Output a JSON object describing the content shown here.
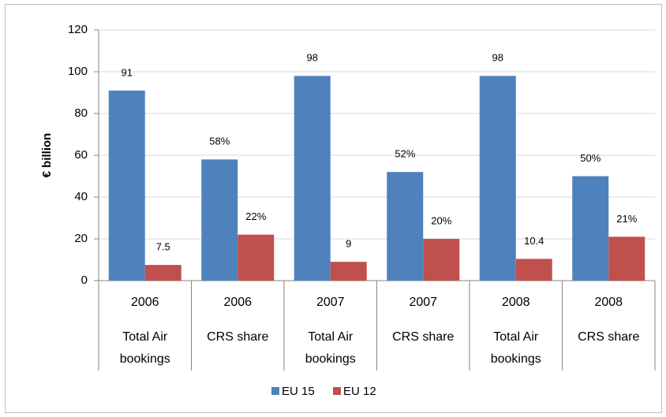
{
  "chart_data": {
    "type": "bar",
    "y_label": "€ billion",
    "categories": [
      "2006",
      "2006",
      "2007",
      "2007",
      "2008",
      "2008"
    ],
    "category_groups": [
      "Total Air bookings",
      "CRS share",
      "Total Air bookings",
      "CRS share",
      "Total Air bookings",
      "CRS share"
    ],
    "series": [
      {
        "name": "EU 15",
        "color": "#4f81bd",
        "values": [
          91,
          58,
          98,
          52,
          98,
          50
        ],
        "value_labels": [
          "91",
          "58%",
          "98",
          "52%",
          "98",
          "50%"
        ]
      },
      {
        "name": "EU 12",
        "color": "#c0504d",
        "values": [
          7.5,
          22,
          9,
          20,
          10.4,
          21
        ],
        "value_labels": [
          "7.5",
          "22%",
          "9",
          "20%",
          "10.4",
          "21%"
        ]
      }
    ],
    "ylim": [
      0,
      120
    ],
    "yticks": [
      0,
      20,
      40,
      60,
      80,
      100,
      120
    ],
    "grid": true,
    "legend": "bottom"
  }
}
